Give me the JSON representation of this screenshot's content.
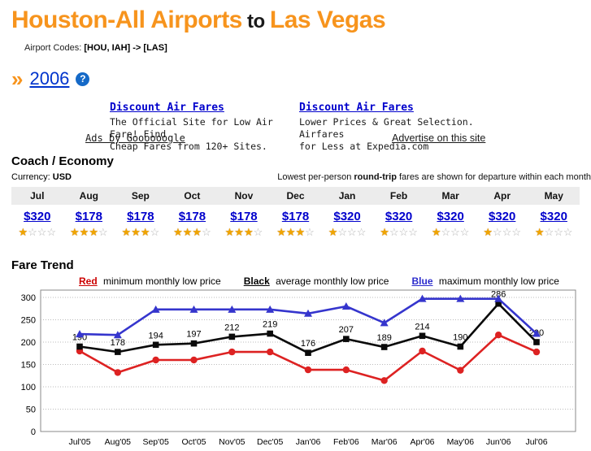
{
  "header": {
    "title_from": "Houston-All Airports",
    "title_mid": " to ",
    "title_to": "Las Vegas",
    "codes_label": "Airport Codes: ",
    "codes_value": "[HOU, IAH] -> [LAS]",
    "chevrons": "»",
    "year_link": "2006",
    "help_glyph": "?"
  },
  "ads": {
    "left": {
      "title": "Discount Air Fares",
      "line1": "The Official Site for Low Air Fare! Find",
      "line2": "Cheap Fares from 120+ Sites."
    },
    "right": {
      "title": "Discount Air Fares",
      "line1": "Lower Prices & Great Selection. Airfares",
      "line2": "for Less at Expedia.com"
    },
    "ads_by": "Ads by Goooooogle",
    "advertise": "Advertise on this site"
  },
  "coach": {
    "section_title": "Coach / Economy",
    "currency_label": "Currency: ",
    "currency_value": "USD",
    "note_prefix": "Lowest per-person ",
    "note_bold": "round-trip",
    "note_suffix": " fares are shown for departure within each month",
    "months": [
      "Jul",
      "Aug",
      "Sep",
      "Oct",
      "Nov",
      "Dec",
      "Jan",
      "Feb",
      "Mar",
      "Apr",
      "May"
    ],
    "prices": [
      "$320",
      "$178",
      "$178",
      "$178",
      "$178",
      "$178",
      "$320",
      "$320",
      "$320",
      "$320",
      "$320"
    ],
    "stars": [
      1,
      3,
      3,
      3,
      3,
      3,
      1,
      1,
      1,
      1,
      1
    ],
    "stars_max": 4
  },
  "trend": {
    "section_title": "Fare Trend",
    "legend": [
      {
        "label": "Red",
        "desc": "minimum monthly low price",
        "color": "#cc0000"
      },
      {
        "label": "Black",
        "desc": "average monthly low price",
        "color": "#000000"
      },
      {
        "label": "Blue",
        "desc": "maximum monthly low price",
        "color": "#2b2bcc"
      }
    ]
  },
  "chart_data": {
    "type": "line",
    "x": [
      "Jul'05",
      "Aug'05",
      "Sep'05",
      "Oct'05",
      "Nov'05",
      "Dec'05",
      "Jan'06",
      "Feb'06",
      "Mar'06",
      "Apr'06",
      "May'06",
      "Jun'06",
      "Jul'06"
    ],
    "series": [
      {
        "name": "minimum monthly low price",
        "color": "#dd2222",
        "marker": "circle",
        "values": [
          180,
          132,
          160,
          160,
          178,
          178,
          138,
          138,
          114,
          180,
          137,
          216,
          178
        ],
        "show_labels": false
      },
      {
        "name": "average monthly low price",
        "color": "#0a0a0a",
        "marker": "square",
        "values": [
          190,
          178,
          194,
          197,
          212,
          219,
          176,
          207,
          189,
          214,
          190,
          286,
          200
        ],
        "show_labels": true
      },
      {
        "name": "maximum monthly low price",
        "color": "#3535cd",
        "marker": "triangle",
        "values": [
          218,
          216,
          273,
          273,
          273,
          273,
          264,
          280,
          243,
          297,
          297,
          297,
          219
        ],
        "show_labels": false
      }
    ],
    "ylabel": "",
    "xlabel": "",
    "ylim": [
      0,
      300
    ],
    "yticks": [
      0,
      50,
      100,
      150,
      200,
      250,
      300
    ],
    "grid": "horizontal-dotted",
    "legend_position": "top"
  },
  "colors": {
    "accent_orange": "#f7941d",
    "link_blue": "#0000cc",
    "year_link_blue": "#0033cc",
    "table_header_bg": "#ececec",
    "star_gold": "#f0a500",
    "grid_gray": "#bbbbbb"
  }
}
